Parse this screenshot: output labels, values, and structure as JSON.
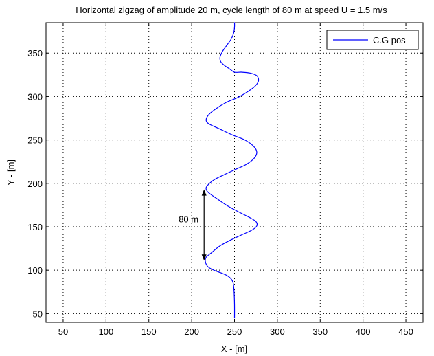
{
  "chart_data": {
    "type": "line",
    "title": "Horizontal zigzag of amplitude 20 m, cycle length of 80 m at speed U = 1.5 m/s",
    "xlabel": "X - [m]",
    "ylabel": "Y - [m]",
    "xlim": [
      30,
      470
    ],
    "ylim": [
      40,
      385
    ],
    "xticks": [
      50,
      100,
      150,
      200,
      250,
      300,
      350,
      400,
      450
    ],
    "yticks": [
      50,
      100,
      150,
      200,
      250,
      300,
      350
    ],
    "grid": true,
    "legend_position": "top-right",
    "series": [
      {
        "name": "C.G pos",
        "color": "#0000ff",
        "points": [
          [
            250,
            45
          ],
          [
            250,
            60
          ],
          [
            249.5,
            75
          ],
          [
            248.5,
            85
          ],
          [
            246,
            90
          ],
          [
            241,
            94
          ],
          [
            234,
            97
          ],
          [
            226,
            100
          ],
          [
            219,
            104
          ],
          [
            216,
            110
          ],
          [
            217,
            115
          ],
          [
            223,
            120
          ],
          [
            233,
            128
          ],
          [
            246,
            135
          ],
          [
            259,
            141
          ],
          [
            270,
            146
          ],
          [
            276,
            151
          ],
          [
            275,
            156
          ],
          [
            267,
            161
          ],
          [
            255,
            167
          ],
          [
            242,
            174
          ],
          [
            230,
            182
          ],
          [
            220,
            189
          ],
          [
            217,
            193
          ],
          [
            218,
            197
          ],
          [
            226,
            204
          ],
          [
            238,
            210
          ],
          [
            251,
            216
          ],
          [
            264,
            222
          ],
          [
            273,
            229
          ],
          [
            276,
            236
          ],
          [
            272,
            243
          ],
          [
            262,
            250
          ],
          [
            247,
            256
          ],
          [
            232,
            263
          ],
          [
            221,
            268
          ],
          [
            217,
            272
          ],
          [
            219,
            278
          ],
          [
            227,
            285
          ],
          [
            240,
            293
          ],
          [
            254,
            299
          ],
          [
            266,
            306
          ],
          [
            274,
            312
          ],
          [
            278,
            318
          ],
          [
            276,
            324
          ],
          [
            268,
            327
          ],
          [
            258,
            328
          ],
          [
            250,
            328
          ],
          [
            244,
            332
          ],
          [
            238,
            336
          ],
          [
            234,
            340
          ],
          [
            233,
            345
          ],
          [
            236,
            352
          ],
          [
            241,
            359
          ],
          [
            246,
            366
          ],
          [
            249,
            373
          ],
          [
            250,
            380
          ],
          [
            250,
            385
          ]
        ]
      }
    ],
    "annotations": [
      {
        "type": "double-arrow",
        "label": "80 m",
        "from": [
          214.5,
          111
        ],
        "to": [
          214.5,
          193
        ]
      }
    ]
  }
}
